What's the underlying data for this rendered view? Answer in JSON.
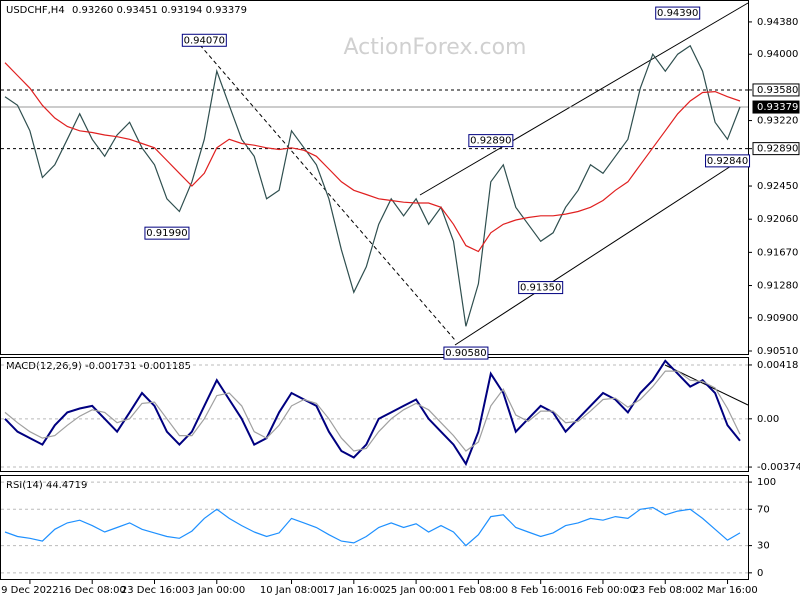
{
  "chart_data": [
    {
      "type": "line",
      "title": "USDCHF,H4",
      "subtitle": "0.93260 0.93451 0.93194 0.93379",
      "watermark": "ActionForex.com",
      "ylim": [
        0.90463,
        0.94626
      ],
      "yticks": [
        {
          "value": 0.9438,
          "label": "0.94380"
        },
        {
          "value": 0.94,
          "label": "0.94000"
        },
        {
          "value": 0.9358,
          "label": "0.93580"
        },
        {
          "value": 0.9322,
          "label": "0.93220"
        },
        {
          "value": 0.9289,
          "label": "0.92890"
        },
        {
          "value": 0.9245,
          "label": "0.92450"
        },
        {
          "value": 0.9206,
          "label": "0.92060"
        },
        {
          "value": 0.9167,
          "label": "0.91670"
        },
        {
          "value": 0.9128,
          "label": "0.91280"
        },
        {
          "value": 0.909,
          "label": "0.90900"
        },
        {
          "value": 0.9051,
          "label": "0.90510"
        }
      ],
      "series": [
        {
          "name": "USDCHF",
          "color": "#2f4f4f",
          "values": [
            0.935,
            0.934,
            0.931,
            0.9255,
            0.927,
            0.93,
            0.933,
            0.93,
            0.928,
            0.9305,
            0.932,
            0.929,
            0.927,
            0.923,
            0.9215,
            0.925,
            0.93,
            0.938,
            0.934,
            0.93,
            0.928,
            0.923,
            0.924,
            0.931,
            0.929,
            0.927,
            0.923,
            0.917,
            0.912,
            0.915,
            0.92,
            0.923,
            0.921,
            0.923,
            0.92,
            0.922,
            0.918,
            0.908,
            0.913,
            0.925,
            0.927,
            0.922,
            0.92,
            0.918,
            0.919,
            0.922,
            0.924,
            0.927,
            0.926,
            0.928,
            0.93,
            0.936,
            0.94,
            0.938,
            0.94,
            0.941,
            0.938,
            0.932,
            0.93,
            0.9338
          ]
        },
        {
          "name": "MA",
          "color": "#e02020",
          "values": [
            0.939,
            0.9375,
            0.936,
            0.934,
            0.9325,
            0.9315,
            0.931,
            0.9308,
            0.9305,
            0.9303,
            0.93,
            0.9295,
            0.929,
            0.9275,
            0.926,
            0.9245,
            0.926,
            0.929,
            0.93,
            0.9295,
            0.9293,
            0.929,
            0.9288,
            0.929,
            0.9287,
            0.928,
            0.9265,
            0.925,
            0.924,
            0.9235,
            0.923,
            0.9228,
            0.9226,
            0.9225,
            0.9225,
            0.922,
            0.92,
            0.9175,
            0.9168,
            0.919,
            0.92,
            0.9205,
            0.9208,
            0.921,
            0.921,
            0.9212,
            0.9215,
            0.922,
            0.9228,
            0.924,
            0.925,
            0.927,
            0.929,
            0.931,
            0.933,
            0.9345,
            0.9355,
            0.9356,
            0.935,
            0.9345
          ]
        }
      ],
      "levels": [
        {
          "value": 0.9358,
          "label": "0.93580",
          "style": "dashed"
        },
        {
          "value": 0.9289,
          "label": "0.92890",
          "style": "dashed"
        },
        {
          "value": 0.93379,
          "label": "0.93379",
          "style": "current"
        }
      ],
      "annotations": [
        {
          "x": 16,
          "value": 0.9407,
          "label": "0.94070",
          "position": "above"
        },
        {
          "x": 13,
          "value": 0.9199,
          "label": "0.91990",
          "position": "below"
        },
        {
          "x": 37,
          "value": 0.9058,
          "label": "0.90580",
          "position": "below"
        },
        {
          "x": 39,
          "value": 0.9289,
          "label": "0.92890",
          "position": "above"
        },
        {
          "x": 43,
          "value": 0.9135,
          "label": "0.91350",
          "position": "below"
        },
        {
          "x": 54,
          "value": 0.9439,
          "label": "0.94390",
          "position": "above"
        },
        {
          "x": 58,
          "value": 0.9284,
          "label": "0.92840",
          "position": "below"
        }
      ]
    },
    {
      "type": "line",
      "title": "MACD(12,26,9) -0.001731 -0.001185",
      "ylim": [
        -0.00405,
        0.00472
      ],
      "yticks": [
        0.00418,
        {
          "value": 0,
          "label": "0.00"
        },
        -0.003744
      ],
      "series": [
        {
          "name": "MACD",
          "color": "#000080",
          "values": [
            0,
            -0.001,
            -0.0015,
            -0.002,
            -0.0005,
            0.0005,
            0.0008,
            0.001,
            0,
            -0.001,
            0.0005,
            0.002,
            0.001,
            -0.001,
            -0.002,
            -0.001,
            0.001,
            0.003,
            0.0015,
            0,
            -0.002,
            -0.0015,
            0.0005,
            0.002,
            0.0015,
            0.001,
            -0.001,
            -0.0025,
            -0.003,
            -0.002,
            0,
            0.0005,
            0.001,
            0.0015,
            0,
            -0.001,
            -0.002,
            -0.0035,
            -0.001,
            0.0035,
            0.002,
            -0.001,
            0,
            0.001,
            0.0005,
            -0.001,
            0,
            0.001,
            0.002,
            0.0015,
            0.0005,
            0.002,
            0.003,
            0.0045,
            0.0035,
            0.0025,
            0.003,
            0.002,
            -0.0005,
            -0.0017
          ]
        },
        {
          "name": "Signal",
          "color": "#a0a0a0",
          "values": [
            0.0005,
            -0.0003,
            -0.001,
            -0.0015,
            -0.0013,
            -0.0005,
            0.0002,
            0.0007,
            0.0005,
            -0.0003,
            0,
            0.0012,
            0.0013,
            0,
            -0.0013,
            -0.0013,
            0,
            0.0018,
            0.002,
            0.001,
            -0.001,
            -0.0015,
            -0.0005,
            0.001,
            0.0015,
            0.0012,
            0,
            -0.0015,
            -0.0025,
            -0.0023,
            -0.001,
            0,
            0.0007,
            0.0012,
            0.0007,
            -0.0003,
            -0.0013,
            -0.0025,
            -0.0018,
            0.001,
            0.0023,
            0.0003,
            -0.0002,
            0.0006,
            0.0006,
            -0.0003,
            -0.0002,
            0.0006,
            0.0015,
            0.0016,
            0.0009,
            0.0015,
            0.0025,
            0.0037,
            0.0037,
            0.003,
            0.0029,
            0.0024,
            0.0008,
            -0.0012
          ]
        }
      ]
    },
    {
      "type": "line",
      "title": "RSI(14) 44.4719",
      "ylim": [
        -7.9,
        106.7
      ],
      "yticks": [
        100,
        70,
        30,
        0
      ],
      "categories": [
        null,
        null,
        "9 Dec 2022",
        null,
        null,
        null,
        null,
        "16 Dec 08:00",
        null,
        null,
        null,
        null,
        "23 Dec 16:00",
        null,
        null,
        null,
        null,
        "3 Jan 00:00",
        null,
        null,
        null,
        null,
        null,
        "10 Jan 08:00",
        null,
        null,
        null,
        null,
        "17 Jan 16:00",
        null,
        null,
        null,
        null,
        "25 Jan 00:00",
        null,
        null,
        null,
        null,
        "1 Feb 08:00",
        null,
        null,
        null,
        null,
        "8 Feb 16:00",
        null,
        null,
        null,
        null,
        "16 Feb 00:00",
        null,
        null,
        null,
        null,
        "23 Feb 08:00",
        null,
        null,
        null,
        null,
        "2 Mar 16:00",
        null
      ],
      "series": [
        {
          "name": "RSI",
          "color": "#1e90ff",
          "values": [
            45,
            40,
            38,
            35,
            48,
            55,
            58,
            52,
            45,
            50,
            55,
            48,
            44,
            40,
            38,
            46,
            60,
            70,
            60,
            52,
            45,
            40,
            44,
            60,
            55,
            50,
            42,
            35,
            33,
            40,
            50,
            55,
            50,
            54,
            45,
            52,
            45,
            30,
            42,
            62,
            64,
            50,
            45,
            40,
            44,
            52,
            55,
            60,
            58,
            62,
            60,
            70,
            72,
            64,
            68,
            70,
            60,
            48,
            36,
            44
          ]
        }
      ]
    }
  ]
}
